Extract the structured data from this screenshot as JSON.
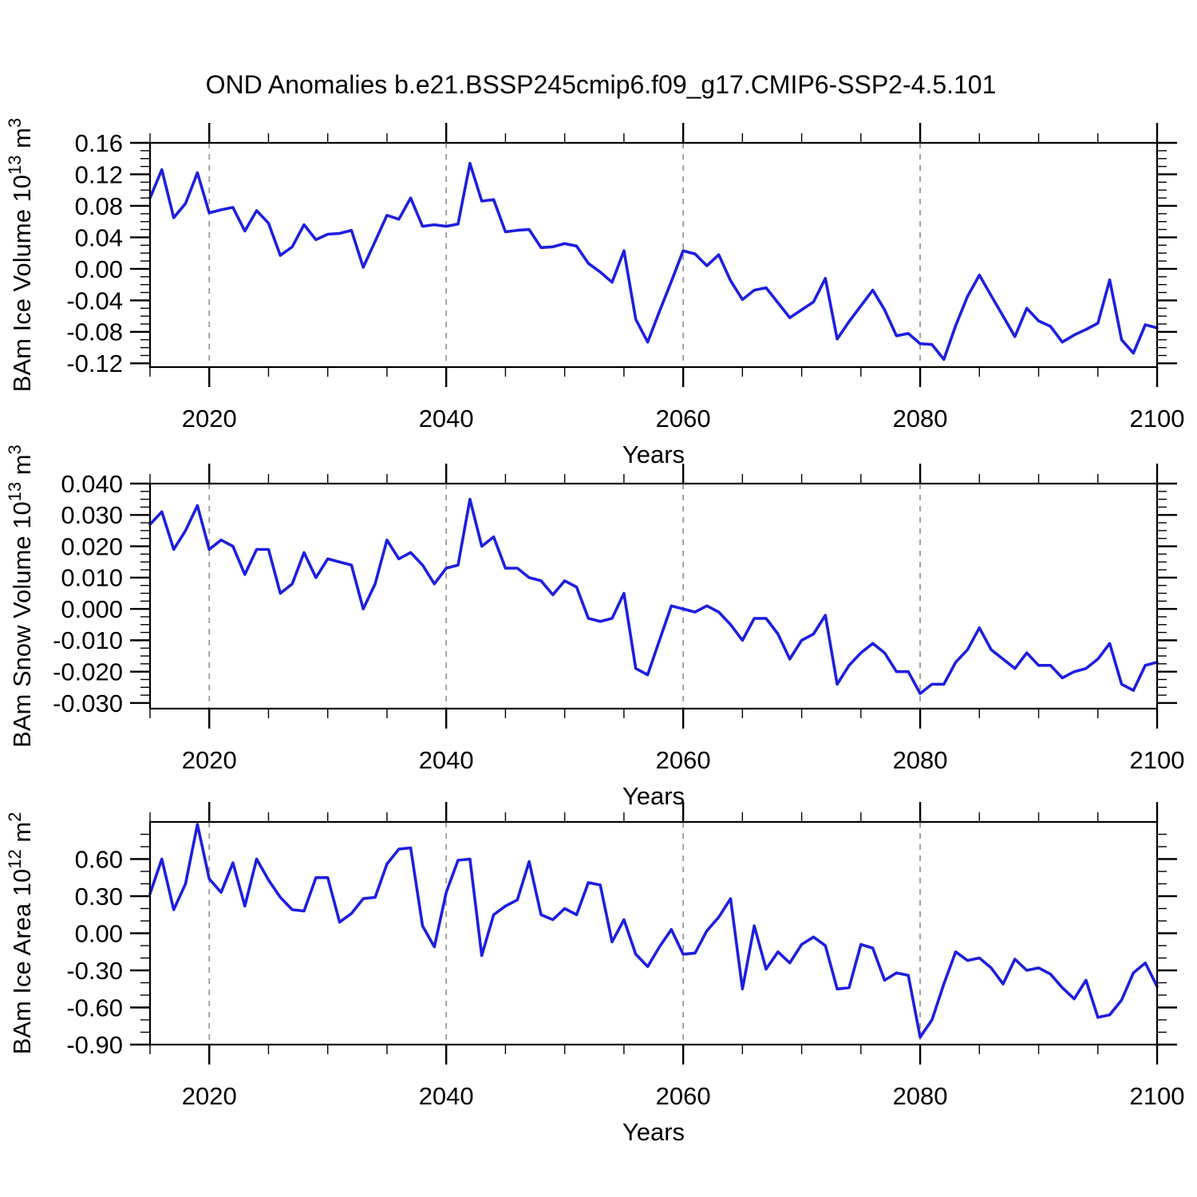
{
  "title": "OND Anomalies b.e21.BSSP245cmip6.f09_g17.CMIP6-SSP2-4.5.101",
  "colors": {
    "line": "#1e1ee0",
    "grid": "#999999",
    "frame": "#000000",
    "text": "#000000"
  },
  "x_axis": {
    "label": "Years",
    "min": 2015,
    "max": 2100,
    "major_step": 20,
    "minor_step": 5,
    "major": [
      {
        "v": 2020,
        "label": "2020"
      },
      {
        "v": 2040,
        "label": "2040"
      },
      {
        "v": 2060,
        "label": "2060"
      },
      {
        "v": 2080,
        "label": "2080"
      },
      {
        "v": 2100,
        "label": "2100"
      }
    ],
    "gridlines": [
      2020,
      2040,
      2060,
      2080
    ]
  },
  "chart_data": [
    {
      "type": "line",
      "name": "ice-volume",
      "ylabel": "BAm Ice Volume 10^13 m^3",
      "ylabel_parts": {
        "pre": "BAm Ice Volume 10",
        "sup1": "13",
        "mid": " m",
        "sup2": "3"
      },
      "ylim": [
        -0.1247,
        0.16
      ],
      "y_major_step": 0.04,
      "y_minor_step": 0.01,
      "y_ticks": [
        {
          "v": 0.16,
          "label": "0.16"
        },
        {
          "v": 0.12,
          "label": "0.12"
        },
        {
          "v": 0.08,
          "label": "0.08"
        },
        {
          "v": 0.04,
          "label": "0.04"
        },
        {
          "v": 0.0,
          "label": "0.00"
        },
        {
          "v": -0.04,
          "label": "-0.04"
        },
        {
          "v": -0.08,
          "label": "-0.08"
        },
        {
          "v": -0.12,
          "label": "-0.12"
        }
      ],
      "x_start": 2015,
      "x_step": 1,
      "values": [
        0.09,
        0.126,
        0.065,
        0.083,
        0.122,
        0.071,
        0.075,
        0.078,
        0.048,
        0.074,
        0.058,
        0.017,
        0.028,
        0.056,
        0.037,
        0.044,
        0.045,
        0.049,
        0.002,
        0.035,
        0.068,
        0.063,
        0.09,
        0.054,
        0.056,
        0.054,
        0.057,
        0.134,
        0.086,
        0.088,
        0.047,
        0.049,
        0.05,
        0.027,
        0.028,
        0.032,
        0.029,
        0.007,
        -0.004,
        -0.017,
        0.023,
        -0.064,
        -0.093,
        -0.054,
        -0.016,
        0.023,
        0.019,
        0.004,
        0.018,
        -0.015,
        -0.039,
        -0.027,
        -0.024,
        -0.043,
        -0.062,
        -0.052,
        -0.042,
        -0.012,
        -0.089,
        -0.067,
        -0.047,
        -0.027,
        -0.052,
        -0.085,
        -0.082,
        -0.095,
        -0.096,
        -0.115,
        -0.072,
        -0.035,
        -0.008,
        -0.034,
        -0.06,
        -0.086,
        -0.05,
        -0.066,
        -0.073,
        -0.093,
        -0.084,
        -0.077,
        -0.069,
        -0.014,
        -0.09,
        -0.107,
        -0.071,
        -0.075
      ]
    },
    {
      "type": "line",
      "name": "snow-volume",
      "ylabel": "BAm Snow Volume 10^13 m^3",
      "ylabel_parts": {
        "pre": "BAm Snow Volume 10",
        "sup1": "13",
        "mid": " m",
        "sup2": "3"
      },
      "ylim": [
        -0.0318,
        0.04
      ],
      "y_major_step": 0.01,
      "y_minor_step": 0.0025,
      "y_ticks": [
        {
          "v": 0.04,
          "label": "0.040"
        },
        {
          "v": 0.03,
          "label": "0.030"
        },
        {
          "v": 0.02,
          "label": "0.020"
        },
        {
          "v": 0.01,
          "label": "0.010"
        },
        {
          "v": 0.0,
          "label": "0.000"
        },
        {
          "v": -0.01,
          "label": "-0.010"
        },
        {
          "v": -0.02,
          "label": "-0.020"
        },
        {
          "v": -0.03,
          "label": "-0.030"
        }
      ],
      "x_start": 2015,
      "x_step": 1,
      "values": [
        0.027,
        0.031,
        0.019,
        0.025,
        0.033,
        0.019,
        0.022,
        0.02,
        0.011,
        0.019,
        0.019,
        0.005,
        0.008,
        0.018,
        0.01,
        0.016,
        0.015,
        0.014,
        0.0,
        0.008,
        0.022,
        0.016,
        0.018,
        0.014,
        0.008,
        0.013,
        0.014,
        0.035,
        0.02,
        0.023,
        0.013,
        0.013,
        0.01,
        0.009,
        0.0045,
        0.009,
        0.007,
        -0.003,
        -0.004,
        -0.003,
        0.005,
        -0.019,
        -0.021,
        -0.01,
        0.001,
        0.0,
        -0.001,
        0.001,
        -0.001,
        -0.005,
        -0.01,
        -0.003,
        -0.003,
        -0.008,
        -0.016,
        -0.01,
        -0.008,
        -0.002,
        -0.024,
        -0.018,
        -0.014,
        -0.011,
        -0.014,
        -0.02,
        -0.02,
        -0.027,
        -0.024,
        -0.024,
        -0.017,
        -0.013,
        -0.006,
        -0.013,
        -0.016,
        -0.019,
        -0.014,
        -0.018,
        -0.018,
        -0.022,
        -0.02,
        -0.019,
        -0.016,
        -0.011,
        -0.024,
        -0.026,
        -0.018,
        -0.017
      ]
    },
    {
      "type": "line",
      "name": "ice-area",
      "ylabel": "BAm Ice Area 10^12 m^2",
      "ylabel_parts": {
        "pre": "BAm Ice Area 10",
        "sup1": "12",
        "mid": " m",
        "sup2": "2"
      },
      "ylim": [
        -0.9,
        0.9
      ],
      "y_major_step": 0.3,
      "y_minor_step": 0.1,
      "y_ticks": [
        {
          "v": 0.6,
          "label": "0.60"
        },
        {
          "v": 0.3,
          "label": "0.30"
        },
        {
          "v": 0.0,
          "label": "0.00"
        },
        {
          "v": -0.3,
          "label": "-0.30"
        },
        {
          "v": -0.6,
          "label": "-0.60"
        },
        {
          "v": -0.9,
          "label": "-0.90"
        }
      ],
      "x_start": 2015,
      "x_step": 1,
      "values": [
        0.32,
        0.6,
        0.19,
        0.4,
        0.88,
        0.44,
        0.33,
        0.57,
        0.22,
        0.6,
        0.43,
        0.29,
        0.19,
        0.18,
        0.45,
        0.45,
        0.09,
        0.16,
        0.28,
        0.29,
        0.56,
        0.68,
        0.69,
        0.06,
        -0.11,
        0.33,
        0.59,
        0.6,
        -0.18,
        0.15,
        0.22,
        0.27,
        0.58,
        0.15,
        0.11,
        0.2,
        0.15,
        0.41,
        0.39,
        -0.07,
        0.11,
        -0.17,
        -0.27,
        -0.11,
        0.03,
        -0.17,
        -0.16,
        0.02,
        0.13,
        0.28,
        -0.45,
        0.06,
        -0.29,
        -0.15,
        -0.24,
        -0.09,
        -0.03,
        -0.1,
        -0.45,
        -0.44,
        -0.09,
        -0.12,
        -0.38,
        -0.32,
        -0.34,
        -0.84,
        -0.7,
        -0.41,
        -0.15,
        -0.22,
        -0.2,
        -0.28,
        -0.41,
        -0.21,
        -0.3,
        -0.28,
        -0.33,
        -0.44,
        -0.53,
        -0.38,
        -0.68,
        -0.66,
        -0.54,
        -0.32,
        -0.24,
        -0.43
      ]
    }
  ]
}
